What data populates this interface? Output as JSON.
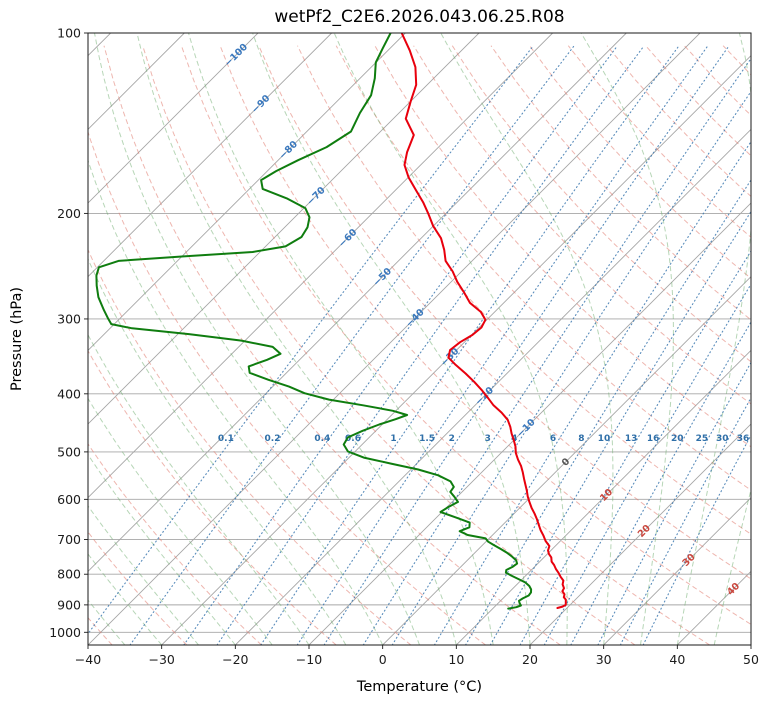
{
  "chart_data": {
    "type": "line",
    "chart_kind": "skew-t-log-p",
    "title": "wetPf2_C2E6.2026.043.06.25.R08",
    "xlabel": "Temperature (°C)",
    "ylabel": "Pressure (hPa)",
    "x_range": [
      -40,
      50
    ],
    "p_range": [
      100,
      1050
    ],
    "skew_degrees": 45,
    "grid": true,
    "x_tick_values": [
      -40,
      -30,
      -20,
      -10,
      0,
      10,
      20,
      30,
      40,
      50
    ],
    "x_tick_labels": [
      "−40",
      "−30",
      "−20",
      "−10",
      "0",
      "10",
      "20",
      "30",
      "40",
      "50"
    ],
    "p_ticks": [
      100,
      200,
      300,
      400,
      500,
      600,
      700,
      800,
      900,
      1000
    ],
    "series": [
      {
        "name": "temperature",
        "label": "Temperature profile",
        "color": "#e8000d",
        "points": [
          [
            100,
            -80.5
          ],
          [
            107,
            -77
          ],
          [
            114,
            -74
          ],
          [
            122,
            -71.5
          ],
          [
            130,
            -70
          ],
          [
            139,
            -68.3
          ],
          [
            148,
            -65
          ],
          [
            158,
            -63.6
          ],
          [
            166,
            -62.2
          ],
          [
            174,
            -60
          ],
          [
            183,
            -57.2
          ],
          [
            192,
            -54.5
          ],
          [
            200,
            -52.4
          ],
          [
            210,
            -50
          ],
          [
            220,
            -47.3
          ],
          [
            230,
            -45.3
          ],
          [
            240,
            -43.6
          ],
          [
            250,
            -41.2
          ],
          [
            260,
            -39.2
          ],
          [
            271,
            -36.8
          ],
          [
            282,
            -34.6
          ],
          [
            292,
            -31.9
          ],
          [
            301,
            -30.2
          ],
          [
            310,
            -29.7
          ],
          [
            319,
            -29.9
          ],
          [
            328,
            -30.6
          ],
          [
            338,
            -30.9
          ],
          [
            348,
            -30.1
          ],
          [
            358,
            -28.1
          ],
          [
            370,
            -25.6
          ],
          [
            382,
            -23.3
          ],
          [
            394,
            -21.2
          ],
          [
            406,
            -19.3
          ],
          [
            418,
            -17.5
          ],
          [
            430,
            -15.4
          ],
          [
            442,
            -13.6
          ],
          [
            454,
            -12.3
          ],
          [
            466,
            -11.2
          ],
          [
            478,
            -10
          ],
          [
            490,
            -8.9
          ],
          [
            502,
            -8
          ],
          [
            515,
            -6.8
          ],
          [
            528,
            -5.5
          ],
          [
            541,
            -4.4
          ],
          [
            554,
            -3.4
          ],
          [
            567,
            -2.4
          ],
          [
            580,
            -1.4
          ],
          [
            593,
            -0.5
          ],
          [
            606,
            0.5
          ],
          [
            620,
            1.6
          ],
          [
            634,
            2.8
          ],
          [
            648,
            3.9
          ],
          [
            662,
            4.9
          ],
          [
            676,
            5.9
          ],
          [
            690,
            7
          ],
          [
            704,
            8
          ],
          [
            718,
            9.2
          ],
          [
            730,
            9.6
          ],
          [
            740,
            10.2
          ],
          [
            750,
            11
          ],
          [
            762,
            11.6
          ],
          [
            772,
            12.4
          ],
          [
            784,
            13.2
          ],
          [
            796,
            14.1
          ],
          [
            808,
            14.9
          ],
          [
            820,
            15.8
          ],
          [
            832,
            16.2
          ],
          [
            844,
            16.9
          ],
          [
            854,
            17.1
          ],
          [
            864,
            17.8
          ],
          [
            874,
            18.1
          ],
          [
            882,
            18.7
          ],
          [
            892,
            19.1
          ],
          [
            900,
            19.4
          ],
          [
            906,
            19.2
          ],
          [
            911,
            18.7
          ]
        ]
      },
      {
        "name": "dewpoint",
        "label": "Dew point profile",
        "color": "#0f7d0f",
        "points": [
          [
            100,
            -82
          ],
          [
            106,
            -81
          ],
          [
            112,
            -80
          ],
          [
            119,
            -78
          ],
          [
            127,
            -76.2
          ],
          [
            136,
            -75.3
          ],
          [
            146,
            -74
          ],
          [
            155,
            -75.2
          ],
          [
            163,
            -77.3
          ],
          [
            170,
            -78.8
          ],
          [
            176,
            -79.6
          ],
          [
            182,
            -78.2
          ],
          [
            189,
            -73.5
          ],
          [
            196,
            -69.8
          ],
          [
            203,
            -68
          ],
          [
            211,
            -66.9
          ],
          [
            219,
            -66.4
          ],
          [
            227,
            -67.3
          ],
          [
            232,
            -71
          ],
          [
            236,
            -80
          ],
          [
            240,
            -88
          ],
          [
            246,
            -89.8
          ],
          [
            254,
            -89
          ],
          [
            264,
            -87.6
          ],
          [
            276,
            -85.8
          ],
          [
            290,
            -83.3
          ],
          [
            300,
            -81.5
          ],
          [
            306,
            -80.4
          ],
          [
            311,
            -77
          ],
          [
            318,
            -68.5
          ],
          [
            326,
            -60.5
          ],
          [
            334,
            -55.4
          ],
          [
            343,
            -53.4
          ],
          [
            351,
            -54.4
          ],
          [
            360,
            -56
          ],
          [
            369,
            -55
          ],
          [
            379,
            -51.5
          ],
          [
            389,
            -47.8
          ],
          [
            399,
            -44.8
          ],
          [
            409,
            -40.6
          ],
          [
            418,
            -35.2
          ],
          [
            427,
            -30.4
          ],
          [
            434,
            -27.9
          ],
          [
            441,
            -28.9
          ],
          [
            450,
            -30.4
          ],
          [
            461,
            -31.8
          ],
          [
            473,
            -32.9
          ],
          [
            486,
            -32.5
          ],
          [
            499,
            -31
          ],
          [
            511,
            -28
          ],
          [
            523,
            -23.5
          ],
          [
            535,
            -19
          ],
          [
            547,
            -15.5
          ],
          [
            560,
            -13
          ],
          [
            572,
            -11.8
          ],
          [
            583,
            -11.6
          ],
          [
            594,
            -10.4
          ],
          [
            606,
            -9.2
          ],
          [
            618,
            -9.8
          ],
          [
            630,
            -10.2
          ],
          [
            643,
            -7.4
          ],
          [
            656,
            -4.8
          ],
          [
            668,
            -4.2
          ],
          [
            678,
            -5
          ],
          [
            688,
            -3.4
          ],
          [
            697,
            -0.5
          ],
          [
            706,
            0.3
          ],
          [
            715,
            1.5
          ],
          [
            726,
            3
          ],
          [
            737,
            4.4
          ],
          [
            748,
            5.6
          ],
          [
            758,
            6.6
          ],
          [
            768,
            7.2
          ],
          [
            778,
            7
          ],
          [
            787,
            6.6
          ],
          [
            795,
            6.9
          ],
          [
            804,
            8
          ],
          [
            815,
            9.5
          ],
          [
            826,
            10.9
          ],
          [
            837,
            11.9
          ],
          [
            848,
            12.6
          ],
          [
            858,
            13
          ],
          [
            868,
            13.1
          ],
          [
            878,
            12.7
          ],
          [
            886,
            12.5
          ],
          [
            894,
            12.9
          ],
          [
            902,
            13.4
          ],
          [
            908,
            13
          ],
          [
            913,
            12.1
          ]
        ]
      }
    ],
    "isotherms": {
      "start": -160,
      "end": 50,
      "step": 10,
      "color": "#a6a6a6",
      "labels": [
        {
          "value": -100,
          "text": "−100",
          "color": "#3a78bd"
        },
        {
          "value": -90,
          "text": "−90",
          "color": "#3a78bd"
        },
        {
          "value": -80,
          "text": "−80",
          "color": "#3a78bd"
        },
        {
          "value": -70,
          "text": "−70",
          "color": "#3a78bd"
        },
        {
          "value": -60,
          "text": "−60",
          "color": "#3a78bd"
        },
        {
          "value": -50,
          "text": "−50",
          "color": "#3a78bd"
        },
        {
          "value": -40,
          "text": "−40",
          "color": "#3a78bd"
        },
        {
          "value": -30,
          "text": "−30",
          "color": "#3a78bd"
        },
        {
          "value": -20,
          "text": "−20",
          "color": "#3a78bd"
        },
        {
          "value": -10,
          "text": "−10",
          "color": "#3a78bd"
        },
        {
          "value": 0,
          "text": "0",
          "color": "#555555"
        },
        {
          "value": 10,
          "text": "10",
          "color": "#c9463d"
        },
        {
          "value": 20,
          "text": "20",
          "color": "#c9463d"
        },
        {
          "value": 30,
          "text": "30",
          "color": "#c9463d"
        },
        {
          "value": 40,
          "text": "40",
          "color": "#c9463d"
        }
      ]
    },
    "dry_adiabats": {
      "start": -40,
      "end": 180,
      "step": 10,
      "color": "#e07a6e"
    },
    "moist_adiabats": {
      "start": -40,
      "end": 45,
      "step": 5,
      "color": "#6fae6f"
    },
    "mixing_ratio_lines": {
      "color": "#3c78af",
      "label_color": "#2f6fa8",
      "values": [
        0.1,
        0.2,
        0.4,
        0.6,
        1,
        1.5,
        2,
        3,
        4,
        6,
        8,
        10,
        13,
        16,
        20,
        25,
        30,
        36
      ],
      "labels": [
        "0.1",
        "0.2",
        "0.4",
        "0.6",
        "1",
        "1.5",
        "2",
        "3",
        "4",
        "6",
        "8",
        "10",
        "13",
        "16",
        "20",
        "25",
        "30",
        "36"
      ]
    }
  }
}
